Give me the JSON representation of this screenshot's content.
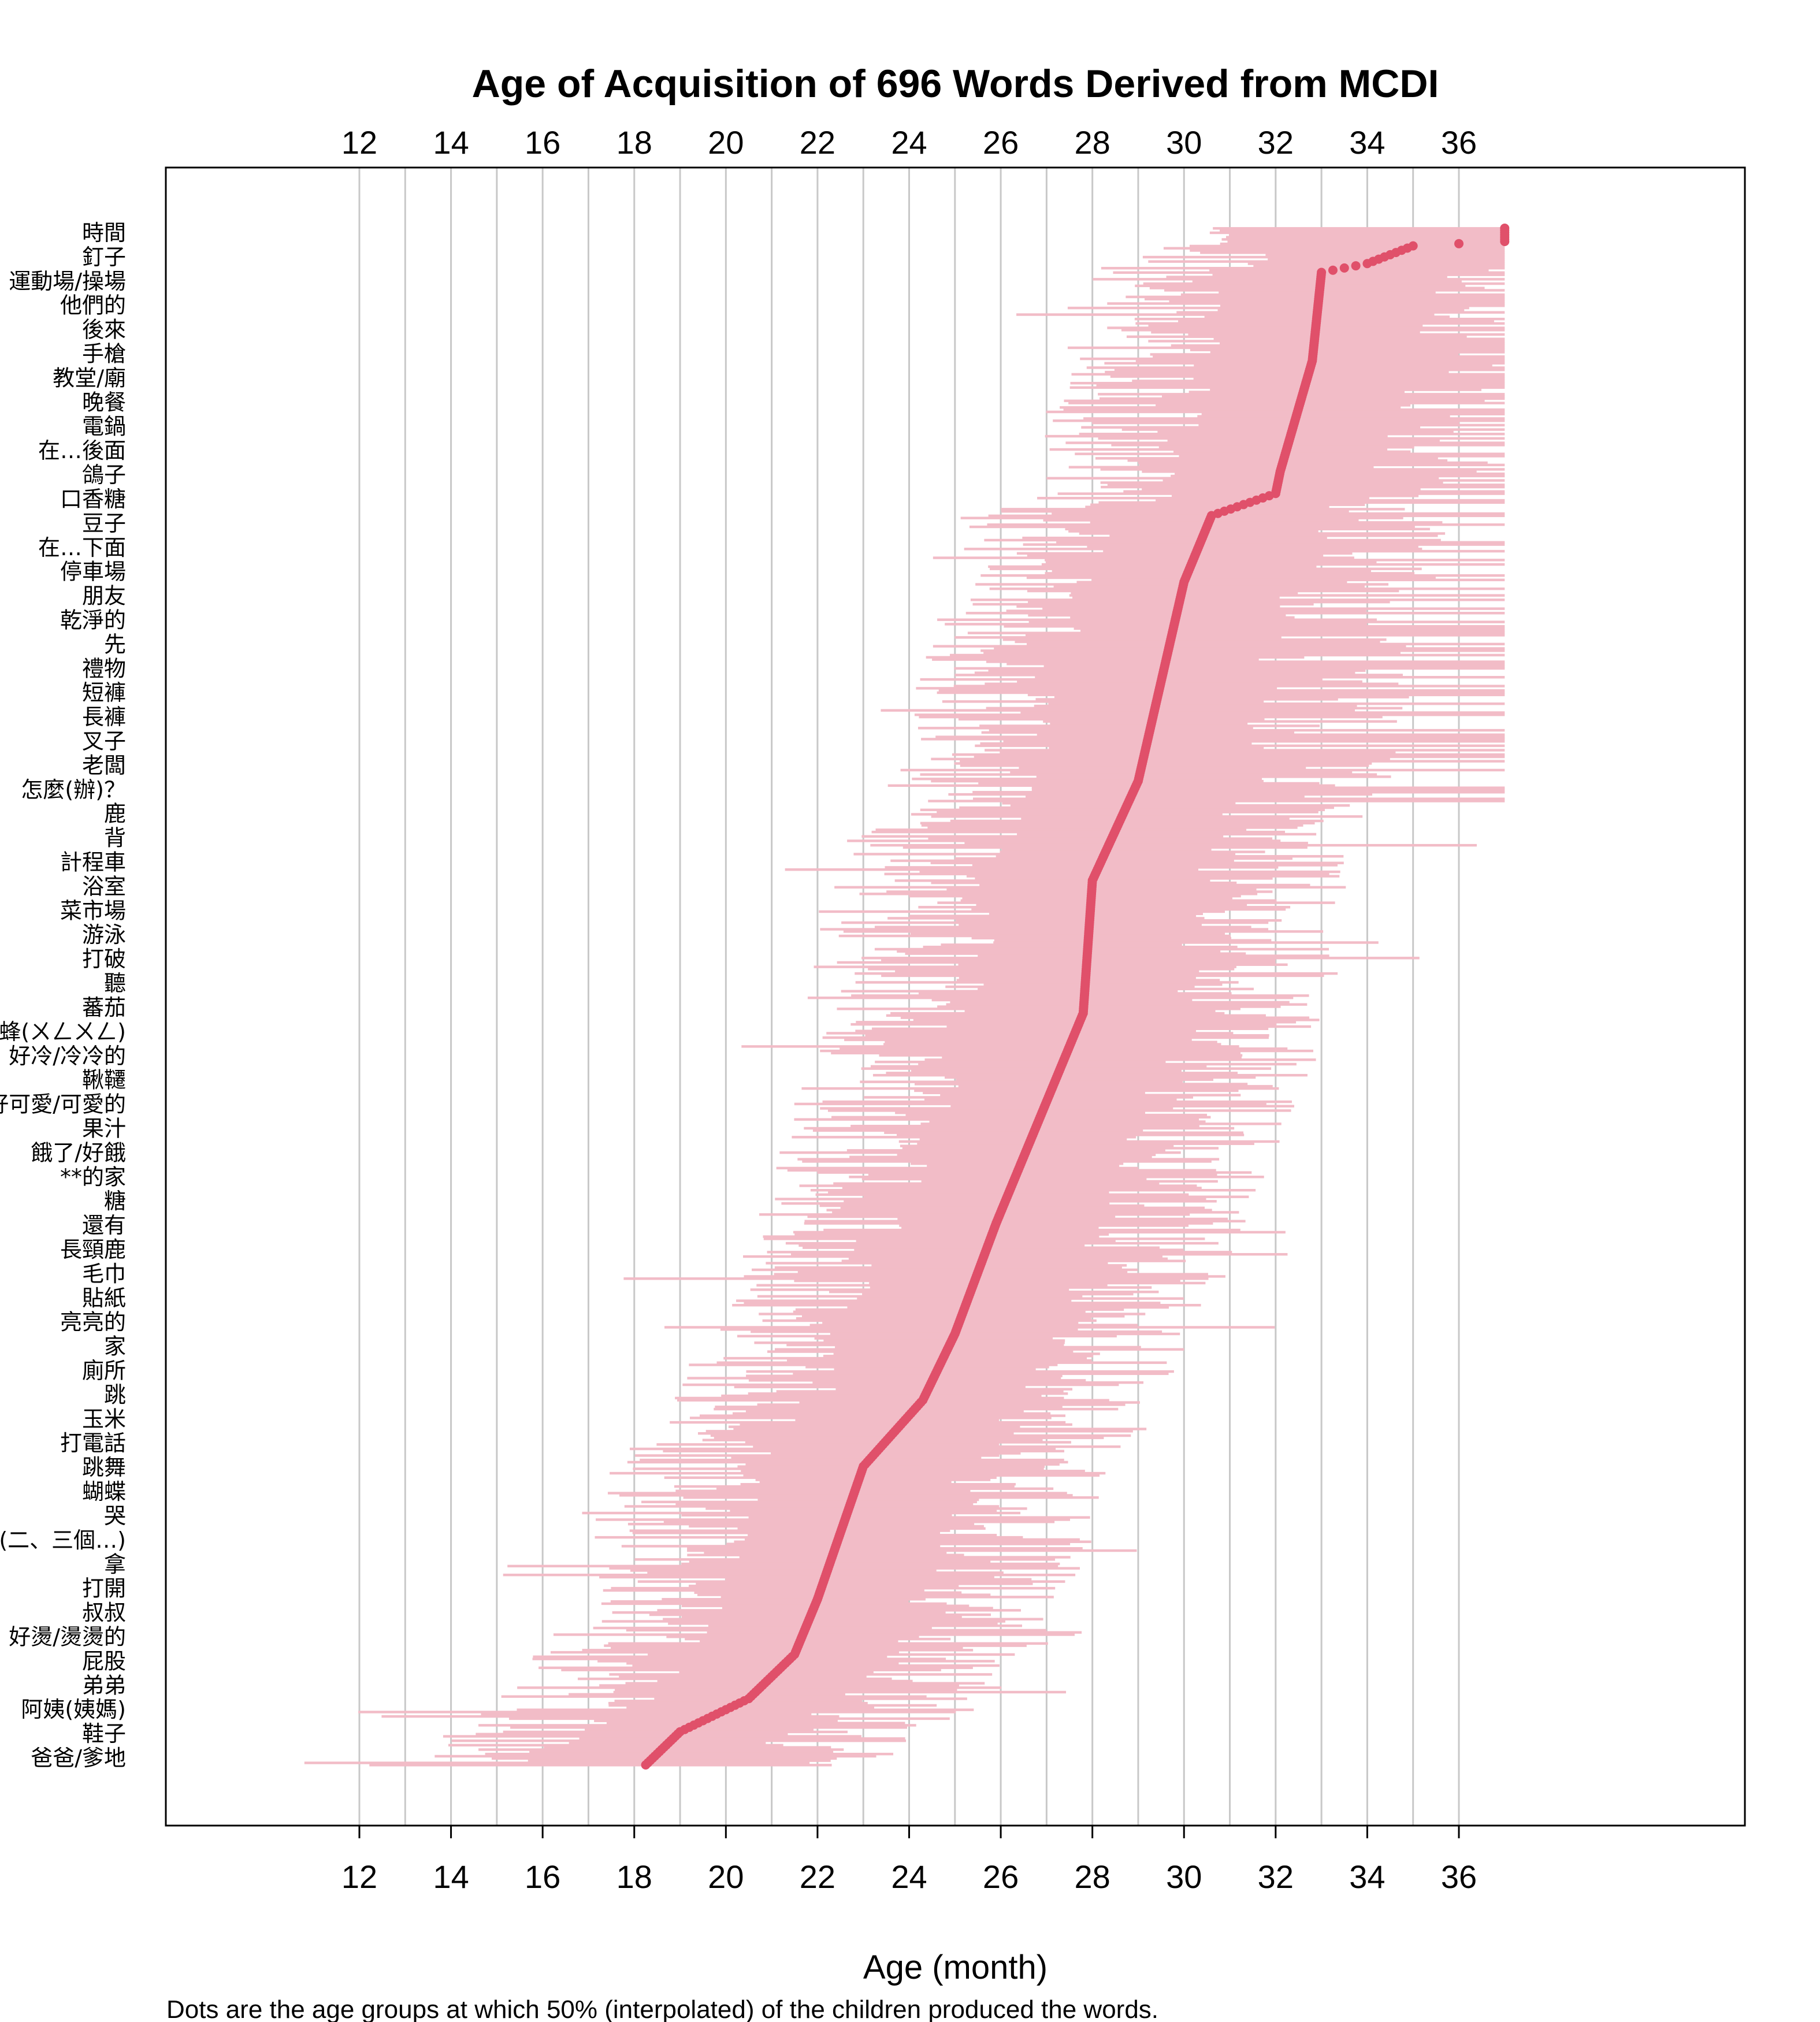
{
  "chart_data": {
    "type": "scatter",
    "title": "Age of Acquisition of 696 Words Derived from MCDI",
    "xlabel": "Age (month)",
    "caption": "Dots are the age groups at which 50% (interpolated) of the children produced the words.",
    "xlim": [
      10.5,
      37.5
    ],
    "x_ticks": [
      12,
      14,
      16,
      18,
      20,
      22,
      24,
      26,
      28,
      30,
      32,
      34,
      36
    ],
    "x_gridlines": [
      12,
      13,
      14,
      15,
      16,
      17,
      18,
      19,
      20,
      21,
      22,
      23,
      24,
      25,
      26,
      27,
      28,
      29,
      30,
      31,
      32,
      33,
      34,
      35,
      36
    ],
    "n_words": 696,
    "word_labels": [
      "時間",
      "釘子",
      "運動場/操場",
      "他們的",
      "後來",
      "手槍",
      "教堂/廟",
      "晚餐",
      "電鍋",
      "在…後面",
      "鴿子",
      "口香糖",
      "豆子",
      "在…下面",
      "停車場",
      "朋友",
      "乾淨的",
      "先",
      "禮物",
      "短褲",
      "長褲",
      "叉子",
      "老闆",
      "怎麼(辦)？",
      "鹿",
      "背",
      "計程車",
      "浴室",
      "菜市場",
      "游泳",
      "打破",
      "聽",
      "蕃茄",
      "蜜蜂(ㄨㄥㄨㄥ)",
      "好冷/冷冷的",
      "鞦韆",
      "好可愛/可愛的",
      "果汁",
      "餓了/好餓",
      "**的家",
      "糖",
      "還有",
      "長頸鹿",
      "毛巾",
      "貼紙",
      "亮亮的",
      "家",
      "廁所",
      "跳",
      "玉米",
      "打電話",
      "跳舞",
      "蝴蝶",
      "哭",
      "個(二、三個…)",
      "拿",
      "打開",
      "叔叔",
      "好燙/燙燙的",
      "屁股",
      "弟弟",
      "阿姨(姨媽)",
      "鞋子",
      "爸爸/爹地"
    ],
    "aoa_anchors": [
      [
        0,
        37.0
      ],
      [
        6,
        37.0
      ],
      [
        7,
        36.0
      ],
      [
        8,
        35.0
      ],
      [
        16,
        34.0
      ],
      [
        20,
        33.0
      ],
      [
        60,
        32.8
      ],
      [
        110,
        32.1
      ],
      [
        120,
        32.0
      ],
      [
        125,
        31.3
      ],
      [
        130,
        30.6
      ],
      [
        160,
        30.0
      ],
      [
        250,
        29.0
      ],
      [
        295,
        28.0
      ],
      [
        355,
        27.8
      ],
      [
        395,
        27.0
      ],
      [
        420,
        26.5
      ],
      [
        450,
        25.9
      ],
      [
        500,
        25.0
      ],
      [
        530,
        24.3
      ],
      [
        560,
        23.0
      ],
      [
        620,
        22.0
      ],
      [
        645,
        21.5
      ],
      [
        665,
        20.5
      ],
      [
        680,
        19.0
      ],
      [
        700,
        18.0
      ],
      [
        730,
        17.0
      ],
      [
        755,
        16.5
      ],
      [
        775,
        15.8
      ],
      [
        790,
        14.5
      ],
      [
        800,
        13.2
      ],
      [
        810,
        12.5
      ]
    ],
    "band_half_width_months": {
      "min": 2.0,
      "max": 5.5
    },
    "colors": {
      "band": "#f2bcc7",
      "band_edge": "#f8dce2",
      "dot": "#e0506a",
      "grid": "#c8c8c8",
      "frame": "#000000"
    }
  }
}
